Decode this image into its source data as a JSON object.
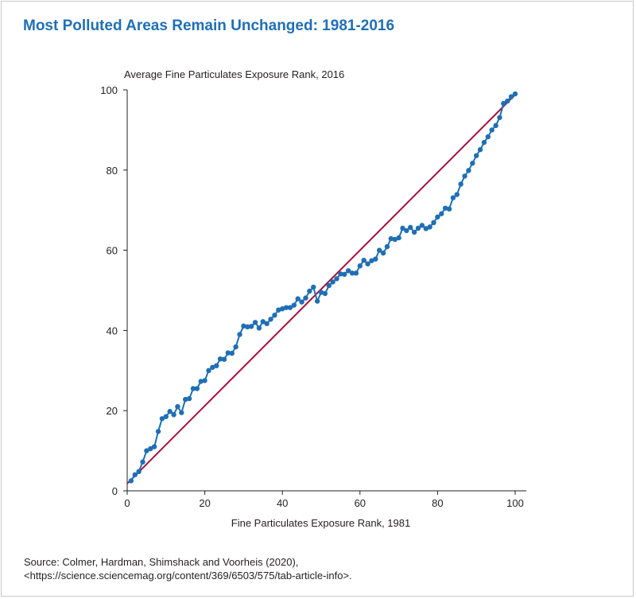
{
  "chart_data": {
    "type": "line",
    "title": "Most Polluted Areas Remain Unchanged: 1981-2016",
    "ylabel": "Average Fine Particulates Exposure Rank, 2016",
    "xlabel": "Fine Particulates Exposure Rank, 1981",
    "xlim": [
      0,
      100
    ],
    "ylim": [
      0,
      100
    ],
    "xticks": [
      0,
      20,
      40,
      60,
      80,
      100
    ],
    "yticks": [
      0,
      20,
      40,
      60,
      80,
      100
    ],
    "grid": false,
    "colors": {
      "series": "#1f6fb5",
      "reference": "#a3133c"
    },
    "series": [
      {
        "x": [
          1,
          2,
          3,
          4,
          5,
          6,
          7,
          8,
          9,
          10,
          11,
          12,
          13,
          14,
          15,
          16,
          17,
          18,
          19,
          20,
          21,
          22,
          23,
          24,
          25,
          26,
          27,
          28,
          29,
          30,
          31,
          32,
          33,
          34,
          35,
          36,
          37,
          38,
          39,
          40,
          41,
          42,
          43,
          44,
          45,
          46,
          47,
          48,
          49,
          50,
          51,
          52,
          53,
          54,
          55,
          56,
          57,
          58,
          59,
          60,
          61,
          62,
          63,
          64,
          65,
          66,
          67,
          68,
          69,
          70,
          71,
          72,
          73,
          74,
          75,
          76,
          77,
          78,
          79,
          80,
          81,
          82,
          83,
          84,
          85,
          86,
          87,
          88,
          89,
          90,
          91,
          92,
          93,
          94,
          95,
          96,
          97,
          98,
          99,
          100
        ],
        "values": [
          2.5,
          4,
          4.8,
          7.2,
          10,
          10.5,
          11,
          14.8,
          18,
          18.5,
          19.8,
          19,
          21,
          19.5,
          22.8,
          23,
          25.5,
          25.5,
          27.3,
          27.5,
          30,
          30.8,
          31.2,
          32.9,
          32.8,
          34.4,
          34.3,
          35.9,
          39,
          41.1,
          40.9,
          41,
          42,
          40.6,
          42.2,
          41.7,
          42.8,
          43.8,
          45.1,
          45.4,
          45.7,
          45.7,
          46.3,
          47.9,
          47.1,
          48.1,
          49.8,
          50.8,
          47.3,
          49.5,
          49.2,
          51.2,
          52.1,
          52.9,
          54.1,
          54,
          54.9,
          54.3,
          54.3,
          56.1,
          57.5,
          56.6,
          57.4,
          57.8,
          60,
          59.3,
          60.9,
          62.9,
          62.7,
          63.1,
          65.5,
          64.9,
          65.7,
          64.5,
          65.5,
          66.2,
          65.4,
          65.8,
          66.9,
          68.3,
          69.1,
          70.5,
          70.3,
          73.1,
          73.9,
          76.5,
          78.5,
          79.9,
          81.7,
          83.6,
          85.1,
          86.9,
          88.3,
          90,
          91.1,
          93.1,
          96.6,
          97.2,
          98.3,
          99
        ]
      },
      {
        "x": [
          0,
          100
        ],
        "values": [
          1.8,
          98.8
        ]
      }
    ]
  },
  "source": {
    "line1": "Source: Colmer, Hardman, Shimshack and Voorheis (2020),",
    "line2": "<https://science.sciencemag.org/content/369/6503/575/tab-article-info>."
  }
}
